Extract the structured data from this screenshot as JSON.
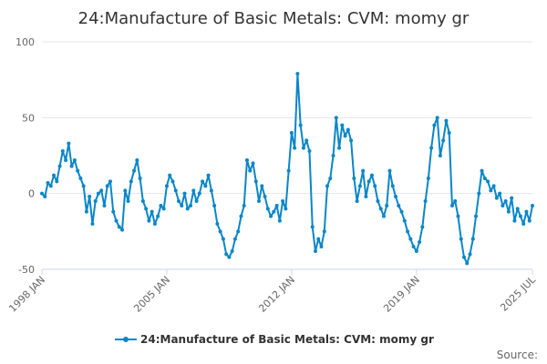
{
  "chart_data": {
    "type": "line",
    "title": "24:Manufacture of Basic Metals: CVM: momy gr",
    "xlabel": "",
    "ylabel": "",
    "ylim": [
      -50,
      100
    ],
    "y_ticks": [
      "100",
      "50",
      "0",
      "-50"
    ],
    "x_ticks": [
      "1998 JAN",
      "2005 JAN",
      "2012 JAN",
      "2019 JAN",
      "2025 JUL"
    ],
    "grid": true,
    "legend_position": "bottom-center",
    "series": [
      {
        "name": "24:Manufacture of Basic Metals: CVM: momy gr",
        "color": "#0a86c8",
        "points": [
          [
            "1998-01",
            0
          ],
          [
            "1998-03",
            -2
          ],
          [
            "1998-05",
            7
          ],
          [
            "1998-07",
            5
          ],
          [
            "1998-09",
            12
          ],
          [
            "1998-11",
            8
          ],
          [
            "1999-01",
            18
          ],
          [
            "1999-03",
            28
          ],
          [
            "1999-05",
            22
          ],
          [
            "1999-07",
            33
          ],
          [
            "1999-09",
            18
          ],
          [
            "1999-11",
            22
          ],
          [
            "2000-01",
            15
          ],
          [
            "2000-03",
            10
          ],
          [
            "2000-05",
            5
          ],
          [
            "2000-07",
            -12
          ],
          [
            "2000-09",
            -2
          ],
          [
            "2000-11",
            -20
          ],
          [
            "2001-01",
            -5
          ],
          [
            "2001-03",
            0
          ],
          [
            "2001-05",
            2
          ],
          [
            "2001-07",
            -8
          ],
          [
            "2001-09",
            5
          ],
          [
            "2001-11",
            8
          ],
          [
            "2002-01",
            -12
          ],
          [
            "2002-03",
            -18
          ],
          [
            "2002-05",
            -22
          ],
          [
            "2002-07",
            -24
          ],
          [
            "2002-09",
            2
          ],
          [
            "2002-11",
            -5
          ],
          [
            "2003-01",
            8
          ],
          [
            "2003-03",
            15
          ],
          [
            "2003-05",
            22
          ],
          [
            "2003-07",
            10
          ],
          [
            "2003-09",
            -5
          ],
          [
            "2003-11",
            -10
          ],
          [
            "2004-01",
            -18
          ],
          [
            "2004-03",
            -12
          ],
          [
            "2004-05",
            -20
          ],
          [
            "2004-07",
            -15
          ],
          [
            "2004-09",
            -8
          ],
          [
            "2004-11",
            -10
          ],
          [
            "2005-01",
            5
          ],
          [
            "2005-03",
            12
          ],
          [
            "2005-05",
            8
          ],
          [
            "2005-07",
            2
          ],
          [
            "2005-09",
            -5
          ],
          [
            "2005-11",
            -8
          ],
          [
            "2006-01",
            0
          ],
          [
            "2006-03",
            -10
          ],
          [
            "2006-05",
            -8
          ],
          [
            "2006-07",
            2
          ],
          [
            "2006-09",
            -5
          ],
          [
            "2006-11",
            0
          ],
          [
            "2007-01",
            8
          ],
          [
            "2007-03",
            5
          ],
          [
            "2007-05",
            12
          ],
          [
            "2007-07",
            2
          ],
          [
            "2007-09",
            -8
          ],
          [
            "2007-11",
            -20
          ],
          [
            "2008-01",
            -25
          ],
          [
            "2008-03",
            -30
          ],
          [
            "2008-05",
            -40
          ],
          [
            "2008-07",
            -42
          ],
          [
            "2008-09",
            -38
          ],
          [
            "2008-11",
            -30
          ],
          [
            "2009-01",
            -25
          ],
          [
            "2009-03",
            -15
          ],
          [
            "2009-05",
            -8
          ],
          [
            "2009-07",
            22
          ],
          [
            "2009-09",
            15
          ],
          [
            "2009-11",
            20
          ],
          [
            "2010-01",
            8
          ],
          [
            "2010-03",
            -5
          ],
          [
            "2010-05",
            5
          ],
          [
            "2010-07",
            -2
          ],
          [
            "2010-09",
            -10
          ],
          [
            "2010-11",
            -15
          ],
          [
            "2011-01",
            -12
          ],
          [
            "2011-03",
            -8
          ],
          [
            "2011-05",
            -18
          ],
          [
            "2011-07",
            -5
          ],
          [
            "2011-09",
            -10
          ],
          [
            "2011-11",
            15
          ],
          [
            "2012-01",
            40
          ],
          [
            "2012-03",
            30
          ],
          [
            "2012-05",
            79
          ],
          [
            "2012-07",
            45
          ],
          [
            "2012-09",
            30
          ],
          [
            "2012-11",
            35
          ],
          [
            "2013-01",
            28
          ],
          [
            "2013-03",
            -22
          ],
          [
            "2013-05",
            -38
          ],
          [
            "2013-07",
            -30
          ],
          [
            "2013-09",
            -35
          ],
          [
            "2013-11",
            -25
          ],
          [
            "2014-01",
            5
          ],
          [
            "2014-03",
            10
          ],
          [
            "2014-05",
            25
          ],
          [
            "2014-07",
            50
          ],
          [
            "2014-09",
            30
          ],
          [
            "2014-11",
            45
          ],
          [
            "2015-01",
            38
          ],
          [
            "2015-03",
            42
          ],
          [
            "2015-05",
            35
          ],
          [
            "2015-07",
            10
          ],
          [
            "2015-09",
            -5
          ],
          [
            "2015-11",
            5
          ],
          [
            "2016-01",
            15
          ],
          [
            "2016-03",
            -2
          ],
          [
            "2016-05",
            8
          ],
          [
            "2016-07",
            12
          ],
          [
            "2016-09",
            5
          ],
          [
            "2016-11",
            -5
          ],
          [
            "2017-01",
            -10
          ],
          [
            "2017-03",
            -15
          ],
          [
            "2017-05",
            -8
          ],
          [
            "2017-07",
            15
          ],
          [
            "2017-09",
            5
          ],
          [
            "2017-11",
            -2
          ],
          [
            "2018-01",
            -8
          ],
          [
            "2018-03",
            -12
          ],
          [
            "2018-05",
            -18
          ],
          [
            "2018-07",
            -25
          ],
          [
            "2018-09",
            -30
          ],
          [
            "2018-11",
            -35
          ],
          [
            "2019-01",
            -38
          ],
          [
            "2019-03",
            -32
          ],
          [
            "2019-05",
            -22
          ],
          [
            "2019-07",
            -5
          ],
          [
            "2019-09",
            10
          ],
          [
            "2019-11",
            30
          ],
          [
            "2020-01",
            45
          ],
          [
            "2020-03",
            50
          ],
          [
            "2020-05",
            25
          ],
          [
            "2020-07",
            35
          ],
          [
            "2020-09",
            48
          ],
          [
            "2020-11",
            40
          ],
          [
            "2021-01",
            -8
          ],
          [
            "2021-03",
            -5
          ],
          [
            "2021-05",
            -15
          ],
          [
            "2021-07",
            -30
          ],
          [
            "2021-09",
            -42
          ],
          [
            "2021-11",
            -46
          ],
          [
            "2022-01",
            -40
          ],
          [
            "2022-03",
            -30
          ],
          [
            "2022-05",
            -15
          ],
          [
            "2022-07",
            0
          ],
          [
            "2022-09",
            15
          ],
          [
            "2022-11",
            10
          ],
          [
            "2023-01",
            8
          ],
          [
            "2023-03",
            2
          ],
          [
            "2023-05",
            5
          ],
          [
            "2023-07",
            -3
          ],
          [
            "2023-09",
            0
          ],
          [
            "2023-11",
            -8
          ],
          [
            "2024-01",
            -5
          ],
          [
            "2024-03",
            -12
          ],
          [
            "2024-05",
            -3
          ],
          [
            "2024-07",
            -18
          ],
          [
            "2024-09",
            -10
          ],
          [
            "2024-11",
            -15
          ],
          [
            "2025-01",
            -20
          ],
          [
            "2025-03",
            -12
          ],
          [
            "2025-05",
            -18
          ],
          [
            "2025-07",
            -8
          ]
        ]
      }
    ]
  },
  "legend": {
    "label": "24:Manufacture of Basic Metals: CVM: momy gr"
  },
  "source": {
    "label": "Source:"
  }
}
